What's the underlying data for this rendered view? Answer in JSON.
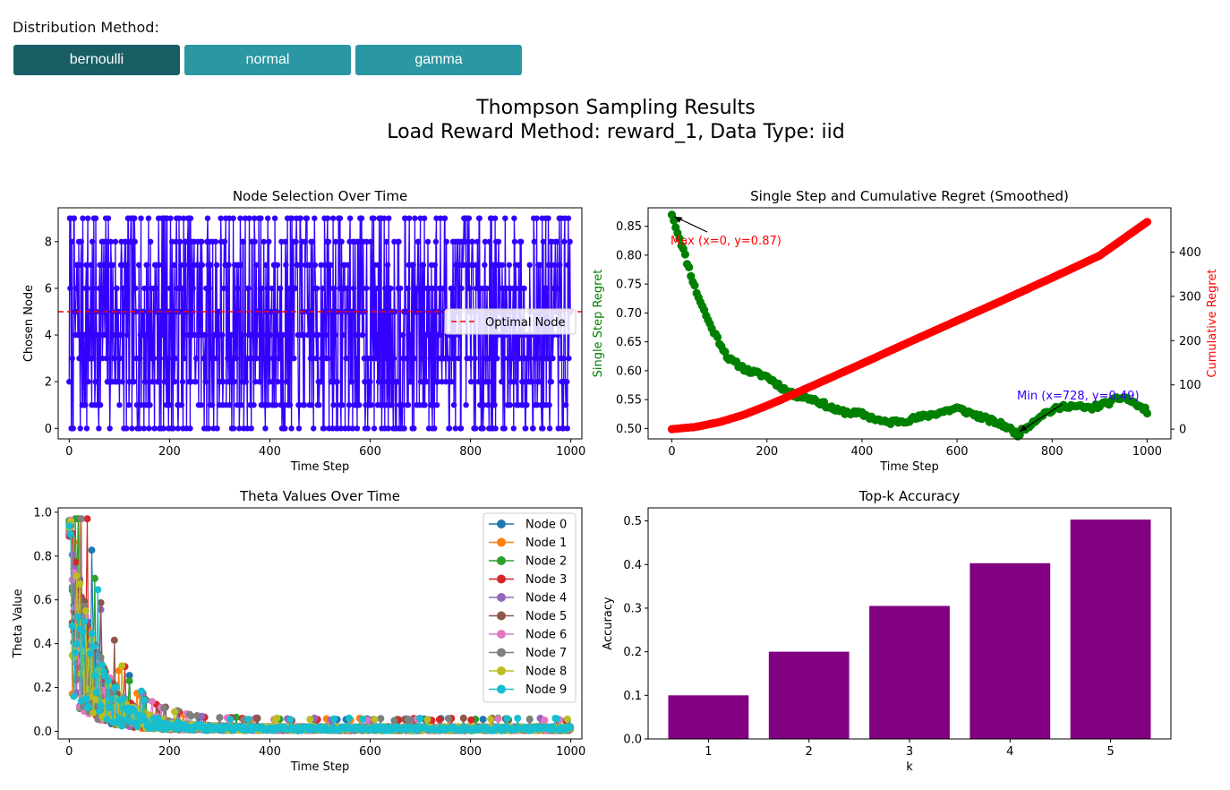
{
  "controls": {
    "label": "Distribution Method:",
    "buttons": [
      {
        "label": "bernoulli",
        "active": true
      },
      {
        "label": "normal",
        "active": false
      },
      {
        "label": "gamma",
        "active": false
      }
    ]
  },
  "figure": {
    "suptitle_line1": "Thompson Sampling Results",
    "suptitle_line2": "Load Reward Method: reward_1, Data Type: iid"
  },
  "chart_data": [
    {
      "type": "line",
      "title": "Node Selection Over Time",
      "xlabel": "Time Step",
      "ylabel": "Chosen Node",
      "xlim": [
        -22,
        1022
      ],
      "ylim": [
        -0.45,
        9.45
      ],
      "xticks": [
        0,
        200,
        400,
        600,
        800,
        1000
      ],
      "yticks": [
        0,
        2,
        4,
        6,
        8
      ],
      "series": [
        {
          "values_range": [
            0,
            9
          ],
          "n_points": 1000,
          "color": "#3300ff",
          "marker": "circle"
        }
      ],
      "reference_lines": [
        {
          "y": 5,
          "name": "Optimal Node",
          "style": "dashed",
          "color": "#ff0000"
        }
      ],
      "legend": [
        {
          "name": "Optimal Node",
          "color": "#ff0000",
          "style": "dashed"
        }
      ],
      "legend_position": "center-right",
      "grid": false
    },
    {
      "type": "line",
      "title": "Single Step and Cumulative Regret (Smoothed)",
      "xlabel": "Time Step",
      "ylabel": "Single Step Regret",
      "ylabel_right": "Cumulative Regret",
      "xlim": [
        -50,
        1050
      ],
      "ylim": [
        0.482,
        0.882
      ],
      "ylim_right": [
        -22,
        500
      ],
      "xticks": [
        0,
        200,
        400,
        600,
        800,
        1000
      ],
      "yticks": [
        0.5,
        0.55,
        0.6,
        0.65,
        0.7,
        0.75,
        0.8,
        0.85
      ],
      "yticks_right": [
        0,
        100,
        200,
        300,
        400
      ],
      "series": [
        {
          "axis": "left",
          "color": "#008000",
          "points": [
            [
              0,
              0.87
            ],
            [
              20,
              0.82
            ],
            [
              50,
              0.74
            ],
            [
              80,
              0.68
            ],
            [
              120,
              0.62
            ],
            [
              160,
              0.6
            ],
            [
              200,
              0.59
            ],
            [
              250,
              0.56
            ],
            [
              300,
              0.55
            ],
            [
              350,
              0.53
            ],
            [
              400,
              0.525
            ],
            [
              450,
              0.51
            ],
            [
              500,
              0.515
            ],
            [
              550,
              0.525
            ],
            [
              600,
              0.535
            ],
            [
              650,
              0.52
            ],
            [
              700,
              0.505
            ],
            [
              728,
              0.49
            ],
            [
              780,
              0.525
            ],
            [
              830,
              0.54
            ],
            [
              880,
              0.535
            ],
            [
              920,
              0.545
            ],
            [
              950,
              0.555
            ],
            [
              1000,
              0.53
            ]
          ]
        },
        {
          "axis": "right",
          "color": "#ff0000",
          "points": [
            [
              0,
              0
            ],
            [
              50,
              5
            ],
            [
              100,
              16
            ],
            [
              150,
              32
            ],
            [
              200,
              53
            ],
            [
              250,
              76
            ],
            [
              300,
              100
            ],
            [
              400,
              148
            ],
            [
              500,
              197
            ],
            [
              600,
              245
            ],
            [
              700,
              293
            ],
            [
              800,
              342
            ],
            [
              900,
              392
            ],
            [
              1000,
              468
            ]
          ]
        }
      ],
      "annotations": [
        {
          "text": "Max (x=0, y=0.87)",
          "x": 0,
          "y": 0.87,
          "color": "#ff0000"
        },
        {
          "text": "Min (x=728, y=0.49)",
          "x": 728,
          "y": 0.49,
          "color": "#3300ff"
        }
      ],
      "grid": false
    },
    {
      "type": "line",
      "title": "Theta Values Over Time",
      "xlabel": "Time Step",
      "ylabel": "Theta Value",
      "xlim": [
        -22,
        1022
      ],
      "ylim": [
        -0.035,
        1.02
      ],
      "xticks": [
        0,
        200,
        400,
        600,
        800,
        1000
      ],
      "yticks": [
        0.0,
        0.2,
        0.4,
        0.6,
        0.8,
        1.0
      ],
      "series": [
        {
          "name": "Node 0",
          "color": "#1f77b4"
        },
        {
          "name": "Node 1",
          "color": "#ff7f0e"
        },
        {
          "name": "Node 2",
          "color": "#2ca02c"
        },
        {
          "name": "Node 3",
          "color": "#d62728"
        },
        {
          "name": "Node 4",
          "color": "#9467bd"
        },
        {
          "name": "Node 5",
          "color": "#8c564b"
        },
        {
          "name": "Node 6",
          "color": "#e377c2"
        },
        {
          "name": "Node 7",
          "color": "#7f7f7f"
        },
        {
          "name": "Node 8",
          "color": "#bcbd22"
        },
        {
          "name": "Node 9",
          "color": "#17becf"
        }
      ],
      "trend": {
        "start": 0.97,
        "end": 0.02
      },
      "legend_position": "top-right",
      "grid": false
    },
    {
      "type": "bar",
      "title": "Top-k Accuracy",
      "xlabel": "k",
      "ylabel": "Accuracy",
      "categories": [
        "1",
        "2",
        "3",
        "4",
        "5"
      ],
      "values": [
        0.1,
        0.2,
        0.305,
        0.403,
        0.503
      ],
      "color": "#800080",
      "ylim": [
        0,
        0.53
      ],
      "yticks": [
        0.0,
        0.1,
        0.2,
        0.3,
        0.4,
        0.5
      ],
      "grid": false
    }
  ]
}
